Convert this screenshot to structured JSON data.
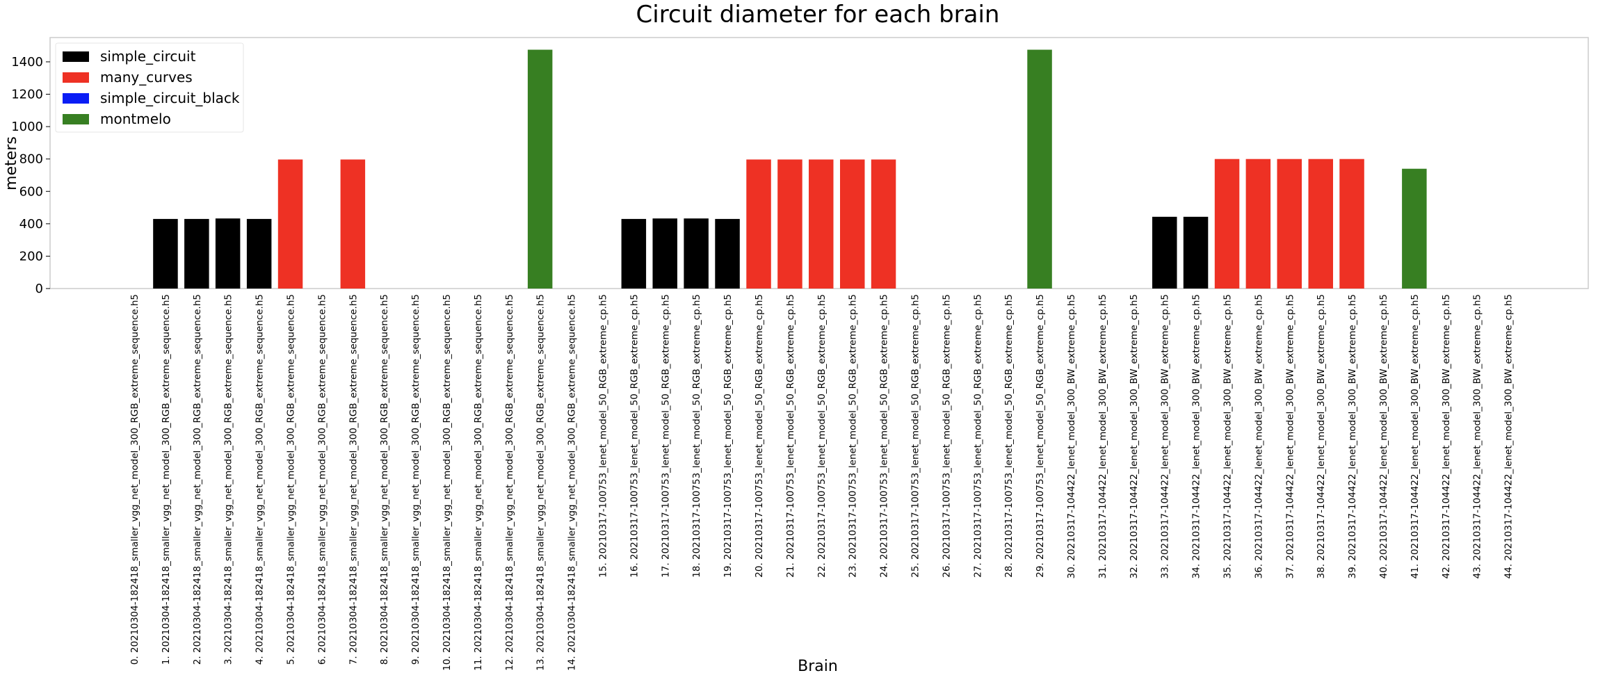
{
  "chart_data": {
    "type": "bar",
    "title": "Circuit diameter for each brain",
    "xlabel": "Brain",
    "ylabel": "meters",
    "ylim": [
      0,
      1550
    ],
    "yticks": [
      0,
      200,
      400,
      600,
      800,
      1000,
      1200,
      1400
    ],
    "grid": false,
    "legend_position": "top-left",
    "legend": [
      {
        "name": "simple_circuit",
        "color": "#000000"
      },
      {
        "name": "many_curves",
        "color": "#ee3124"
      },
      {
        "name": "simple_circuit_black",
        "color": "#0a1df5"
      },
      {
        "name": "montmelo",
        "color": "#377f22"
      }
    ],
    "categories": [
      "0. 20210304-182418_smaller_vgg_net_model_300_RGB_extreme_sequence.h5",
      "1. 20210304-182418_smaller_vgg_net_model_300_RGB_extreme_sequence.h5",
      "2. 20210304-182418_smaller_vgg_net_model_300_RGB_extreme_sequence.h5",
      "3. 20210304-182418_smaller_vgg_net_model_300_RGB_extreme_sequence.h5",
      "4. 20210304-182418_smaller_vgg_net_model_300_RGB_extreme_sequence.h5",
      "5. 20210304-182418_smaller_vgg_net_model_300_RGB_extreme_sequence.h5",
      "6. 20210304-182418_smaller_vgg_net_model_300_RGB_extreme_sequence.h5",
      "7. 20210304-182418_smaller_vgg_net_model_300_RGB_extreme_sequence.h5",
      "8. 20210304-182418_smaller_vgg_net_model_300_RGB_extreme_sequence.h5",
      "9. 20210304-182418_smaller_vgg_net_model_300_RGB_extreme_sequence.h5",
      "10. 20210304-182418_smaller_vgg_net_model_300_RGB_extreme_sequence.h5",
      "11. 20210304-182418_smaller_vgg_net_model_300_RGB_extreme_sequence.h5",
      "12. 20210304-182418_smaller_vgg_net_model_300_RGB_extreme_sequence.h5",
      "13. 20210304-182418_smaller_vgg_net_model_300_RGB_extreme_sequence.h5",
      "14. 20210304-182418_smaller_vgg_net_model_300_RGB_extreme_sequence.h5",
      "15. 20210317-100753_lenet_model_50_RGB_extreme_cp.h5",
      "16. 20210317-100753_lenet_model_50_RGB_extreme_cp.h5",
      "17. 20210317-100753_lenet_model_50_RGB_extreme_cp.h5",
      "18. 20210317-100753_lenet_model_50_RGB_extreme_cp.h5",
      "19. 20210317-100753_lenet_model_50_RGB_extreme_cp.h5",
      "20. 20210317-100753_lenet_model_50_RGB_extreme_cp.h5",
      "21. 20210317-100753_lenet_model_50_RGB_extreme_cp.h5",
      "22. 20210317-100753_lenet_model_50_RGB_extreme_cp.h5",
      "23. 20210317-100753_lenet_model_50_RGB_extreme_cp.h5",
      "24. 20210317-100753_lenet_model_50_RGB_extreme_cp.h5",
      "25. 20210317-100753_lenet_model_50_RGB_extreme_cp.h5",
      "26. 20210317-100753_lenet_model_50_RGB_extreme_cp.h5",
      "27. 20210317-100753_lenet_model_50_RGB_extreme_cp.h5",
      "28. 20210317-100753_lenet_model_50_RGB_extreme_cp.h5",
      "29. 20210317-100753_lenet_model_50_RGB_extreme_cp.h5",
      "30. 20210317-104422_lenet_model_300_BW_extreme_cp.h5",
      "31. 20210317-104422_lenet_model_300_BW_extreme_cp.h5",
      "32. 20210317-104422_lenet_model_300_BW_extreme_cp.h5",
      "33. 20210317-104422_lenet_model_300_BW_extreme_cp.h5",
      "34. 20210317-104422_lenet_model_300_BW_extreme_cp.h5",
      "35. 20210317-104422_lenet_model_300_BW_extreme_cp.h5",
      "36. 20210317-104422_lenet_model_300_BW_extreme_cp.h5",
      "37. 20210317-104422_lenet_model_300_BW_extreme_cp.h5",
      "38. 20210317-104422_lenet_model_300_BW_extreme_cp.h5",
      "39. 20210317-104422_lenet_model_300_BW_extreme_cp.h5",
      "40. 20210317-104422_lenet_model_300_BW_extreme_cp.h5",
      "41. 20210317-104422_lenet_model_300_BW_extreme_cp.h5",
      "42. 20210317-104422_lenet_model_300_BW_extreme_cp.h5",
      "43. 20210317-104422_lenet_model_300_BW_extreme_cp.h5",
      "44. 20210317-104422_lenet_model_300_BW_extreme_cp.h5"
    ],
    "values": [
      0,
      430,
      430,
      433,
      430,
      797,
      0,
      797,
      0,
      0,
      0,
      0,
      0,
      1475,
      0,
      0,
      430,
      433,
      433,
      430,
      797,
      797,
      797,
      797,
      797,
      0,
      0,
      0,
      0,
      1475,
      0,
      0,
      0,
      443,
      443,
      800,
      800,
      800,
      800,
      800,
      0,
      740,
      0,
      0,
      0
    ],
    "bar_series": [
      "",
      "simple_circuit",
      "simple_circuit",
      "simple_circuit",
      "simple_circuit",
      "many_curves",
      "",
      "many_curves",
      "",
      "",
      "",
      "",
      "",
      "montmelo",
      "",
      "",
      "simple_circuit",
      "simple_circuit",
      "simple_circuit",
      "simple_circuit",
      "many_curves",
      "many_curves",
      "many_curves",
      "many_curves",
      "many_curves",
      "",
      "",
      "",
      "",
      "montmelo",
      "",
      "",
      "",
      "simple_circuit",
      "simple_circuit",
      "many_curves",
      "many_curves",
      "many_curves",
      "many_curves",
      "many_curves",
      "",
      "montmelo",
      "",
      "",
      ""
    ]
  }
}
